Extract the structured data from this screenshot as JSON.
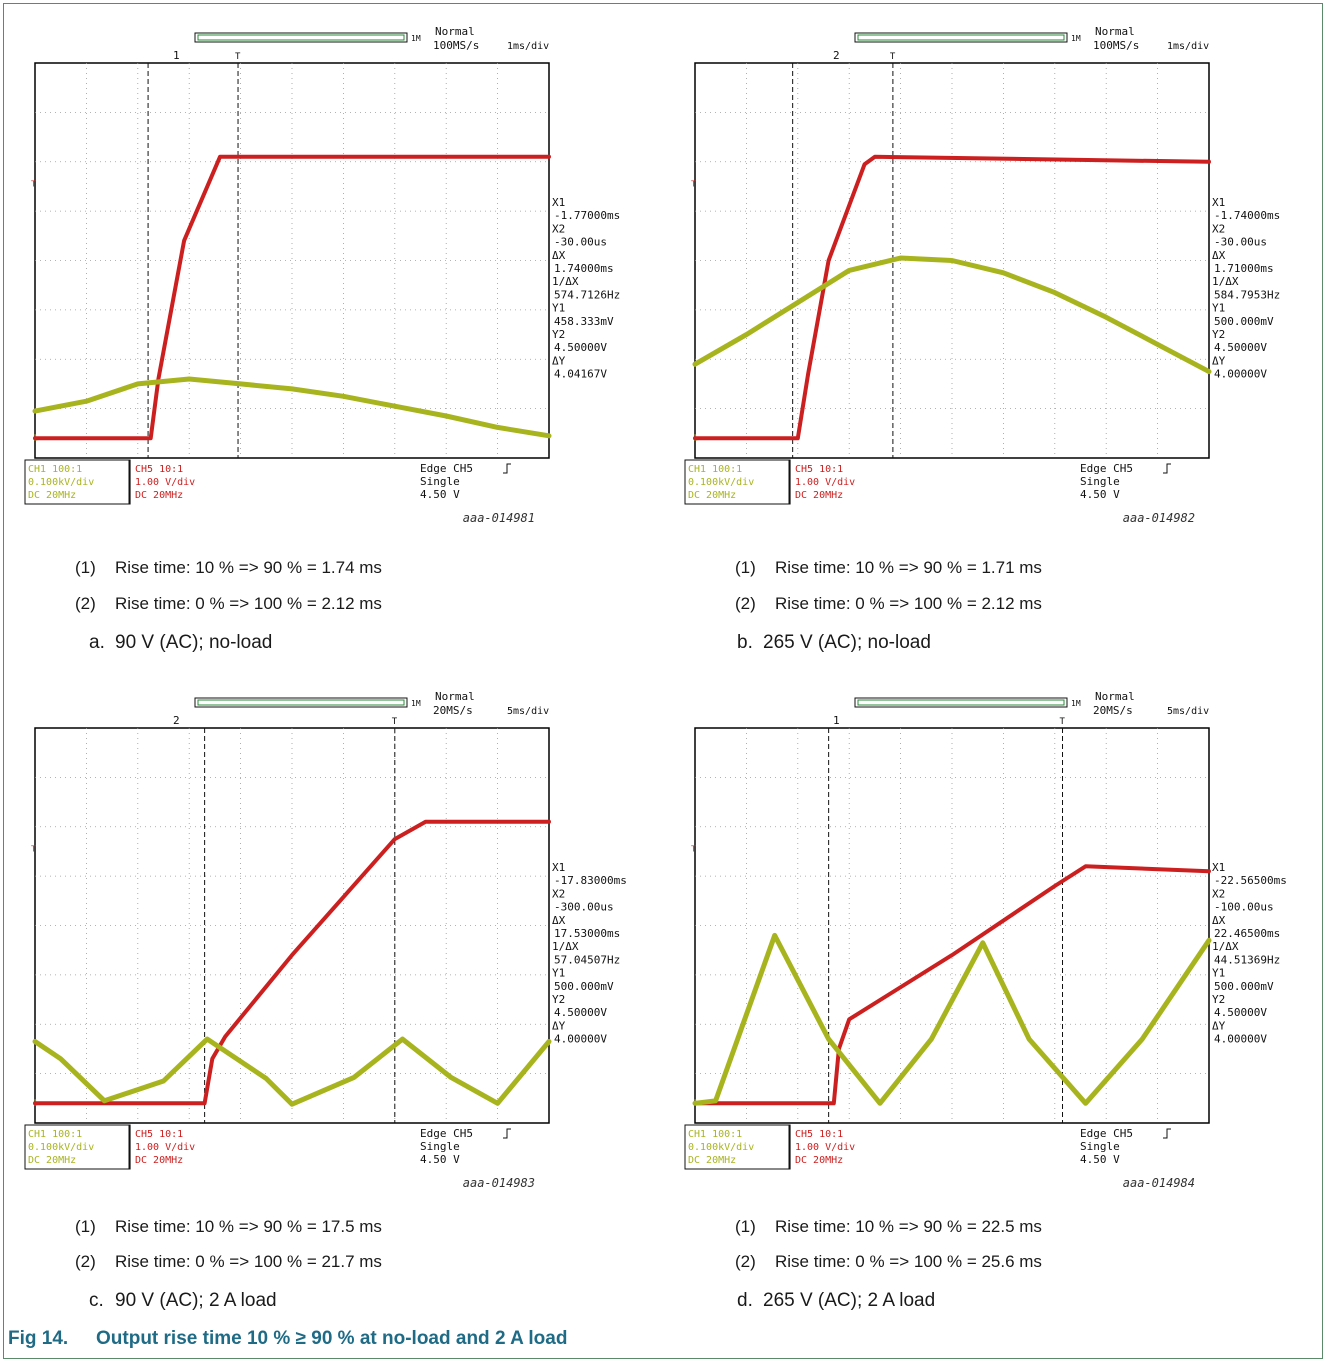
{
  "figure": {
    "label": "Fig 14.",
    "title": "Output rise time 10 % ≥ 90 % at no-load and 2 A load"
  },
  "colors": {
    "ch5": "#cc1f1f",
    "ch1": "#a8b41e",
    "grid": "#9a9a9a",
    "axis": "#000000"
  },
  "chart_data": [
    {
      "type": "line",
      "id": "a",
      "source_id": "aaa-014981",
      "sub_label": "a.",
      "sub_caption": "90 V (AC); no-load",
      "captions": [
        {
          "num": "(1)",
          "text": "Rise time: 10 % => 90 % = 1.74 ms"
        },
        {
          "num": "(2)",
          "text": "Rise time: 0 % => 100 % = 2.12 ms"
        }
      ],
      "scope": {
        "channel": "1",
        "mode": "Normal",
        "sample_rate": "100MS/s",
        "timebase": "1ms/div",
        "main_label": "<< Main:1M >>",
        "trig_marker": "T",
        "level_marker": "1",
        "xlim_div": [
          0,
          10
        ],
        "ylim_div": [
          0,
          8
        ],
        "cursor_x_div": [
          2.2,
          3.95
        ],
        "ch1_settings": [
          "CH1 100:1",
          "0.100kV/div",
          "DC  20MHz"
        ],
        "ch5_settings": [
          "CH5 10:1",
          "1.00 V/div",
          "DC  20MHz"
        ],
        "trigger": [
          "Edge CH5",
          "Single",
          "4.50 V"
        ],
        "readout": [
          "X1",
          "-1.77000ms",
          "X2",
          "-30.00us",
          "ΔX",
          "1.74000ms",
          "1/ΔX",
          "574.7126Hz",
          "Y1",
          "458.333mV",
          "Y2",
          "4.50000V",
          "ΔY",
          "4.04167V"
        ]
      },
      "series": [
        {
          "name": "CH5",
          "x": [
            0,
            2.25,
            2.4,
            2.9,
            3.6,
            10
          ],
          "y": [
            0.4,
            0.4,
            1.6,
            4.4,
            6.1,
            6.1
          ]
        },
        {
          "name": "CH1",
          "x": [
            0,
            1,
            2,
            3,
            4,
            5,
            6,
            7,
            8,
            9,
            10
          ],
          "y": [
            0.95,
            1.15,
            1.5,
            1.6,
            1.5,
            1.4,
            1.25,
            1.05,
            0.85,
            0.62,
            0.45
          ]
        }
      ]
    },
    {
      "type": "line",
      "id": "b",
      "source_id": "aaa-014982",
      "sub_label": "b.",
      "sub_caption": "265 V (AC); no-load",
      "captions": [
        {
          "num": "(1)",
          "text": "Rise time: 10 % => 90 % = 1.71 ms"
        },
        {
          "num": "(2)",
          "text": "Rise time: 0 % => 100 % = 2.12 ms"
        }
      ],
      "scope": {
        "channel": "2",
        "mode": "Normal",
        "sample_rate": "100MS/s",
        "timebase": "1ms/div",
        "main_label": "<< Main:1M >>",
        "trig_marker": "T",
        "level_marker": "1",
        "xlim_div": [
          0,
          10
        ],
        "ylim_div": [
          0,
          8
        ],
        "cursor_x_div": [
          1.9,
          3.85
        ],
        "ch1_settings": [
          "CH1 100:1",
          "0.100kV/div",
          "DC  20MHz"
        ],
        "ch5_settings": [
          "CH5 10:1",
          "1.00 V/div",
          "DC  20MHz"
        ],
        "trigger": [
          "Edge CH5",
          "Single",
          "4.50 V"
        ],
        "readout": [
          "X1",
          "-1.74000ms",
          "X2",
          "-30.00us",
          "ΔX",
          "1.71000ms",
          "1/ΔX",
          "584.7953Hz",
          "Y1",
          "500.000mV",
          "Y2",
          "4.50000V",
          "ΔY",
          "4.00000V"
        ]
      },
      "series": [
        {
          "name": "CH5",
          "x": [
            0,
            2.0,
            2.2,
            2.6,
            3.3,
            3.5,
            10
          ],
          "y": [
            0.4,
            0.4,
            1.7,
            4.0,
            5.95,
            6.1,
            6.0
          ]
        },
        {
          "name": "CH1",
          "x": [
            0,
            1,
            2,
            3,
            4,
            5,
            6,
            7,
            8,
            9,
            10
          ],
          "y": [
            1.9,
            2.5,
            3.15,
            3.8,
            4.05,
            4.0,
            3.75,
            3.35,
            2.85,
            2.3,
            1.75
          ]
        }
      ]
    },
    {
      "type": "line",
      "id": "c",
      "source_id": "aaa-014983",
      "sub_label": "c.",
      "sub_caption": "90 V (AC); 2 A load",
      "captions": [
        {
          "num": "(1)",
          "text": "Rise time: 10 % => 90 % = 17.5 ms"
        },
        {
          "num": "(2)",
          "text": "Rise time: 0 % => 100 % = 21.7 ms"
        }
      ],
      "scope": {
        "channel": "2",
        "mode": "Normal",
        "sample_rate": "20MS/s",
        "timebase": "5ms/div",
        "main_label": "<< Main:1M >>",
        "trig_marker": "T",
        "level_marker": "1",
        "xlim_div": [
          0,
          10
        ],
        "ylim_div": [
          0,
          8
        ],
        "cursor_x_div": [
          3.3,
          7.0
        ],
        "ch1_settings": [
          "CH1 100:1",
          "0.100kV/div",
          "DC  20MHz"
        ],
        "ch5_settings": [
          "CH5 10:1",
          "1.00 V/div",
          "DC  20MHz"
        ],
        "trigger": [
          "Edge CH5",
          "Single",
          "4.50 V"
        ],
        "readout": [
          "X1",
          "-17.83000ms",
          "X2",
          "-300.00us",
          "ΔX",
          "17.53000ms",
          "1/ΔX",
          "57.04507Hz",
          "Y1",
          "500.000mV",
          "Y2",
          "4.50000V",
          "ΔY",
          "4.00000V"
        ]
      },
      "series": [
        {
          "name": "CH5",
          "x": [
            0,
            3.3,
            3.45,
            3.7,
            5.0,
            7.0,
            7.6,
            10
          ],
          "y": [
            0.4,
            0.4,
            1.3,
            1.75,
            3.4,
            5.75,
            6.1,
            6.1
          ]
        },
        {
          "name": "CH1",
          "x": [
            0,
            0.5,
            1.35,
            2.5,
            3.35,
            4.5,
            5.0,
            6.2,
            7.15,
            8.1,
            9.0,
            10
          ],
          "y": [
            1.65,
            1.3,
            0.45,
            0.85,
            1.7,
            0.9,
            0.38,
            0.92,
            1.7,
            0.92,
            0.4,
            1.65
          ]
        }
      ]
    },
    {
      "type": "line",
      "id": "d",
      "source_id": "aaa-014984",
      "sub_label": "d.",
      "sub_caption": "265 V (AC); 2 A load",
      "captions": [
        {
          "num": "(1)",
          "text": "Rise time: 10 % => 90 % = 22.5 ms"
        },
        {
          "num": "(2)",
          "text": "Rise time: 0 % => 100 % = 25.6 ms"
        }
      ],
      "scope": {
        "channel": "1",
        "mode": "Normal",
        "sample_rate": "20MS/s",
        "timebase": "5ms/div",
        "main_label": "<< Main:1M >>",
        "trig_marker": "T",
        "level_marker": "1",
        "xlim_div": [
          0,
          10
        ],
        "ylim_div": [
          0,
          8
        ],
        "cursor_x_div": [
          2.6,
          7.15
        ],
        "ch1_settings": [
          "CH1 100:1",
          "0.100kV/div",
          "DC  20MHz"
        ],
        "ch5_settings": [
          "CH5 10:1",
          "1.00 V/div",
          "DC  20MHz"
        ],
        "trigger": [
          "Edge CH5",
          "Single",
          "4.50 V"
        ],
        "readout": [
          "X1",
          "-22.56500ms",
          "X2",
          "-100.00us",
          "ΔX",
          "22.46500ms",
          "1/ΔX",
          "44.51369Hz",
          "Y1",
          "500.000mV",
          "Y2",
          "4.50000V",
          "ΔY",
          "4.00000V"
        ]
      },
      "series": [
        {
          "name": "CH5",
          "x": [
            0,
            2.7,
            2.8,
            3.0,
            5.0,
            7.0,
            7.6,
            10
          ],
          "y": [
            0.4,
            0.4,
            1.5,
            2.1,
            3.4,
            4.8,
            5.2,
            5.1
          ]
        },
        {
          "name": "CH1",
          "x": [
            0,
            0.4,
            1.55,
            2.6,
            3.6,
            4.6,
            5.6,
            6.5,
            7.6,
            8.7,
            10
          ],
          "y": [
            0.4,
            0.45,
            3.8,
            1.7,
            0.4,
            1.7,
            3.65,
            1.7,
            0.4,
            1.7,
            3.7
          ]
        }
      ]
    }
  ]
}
